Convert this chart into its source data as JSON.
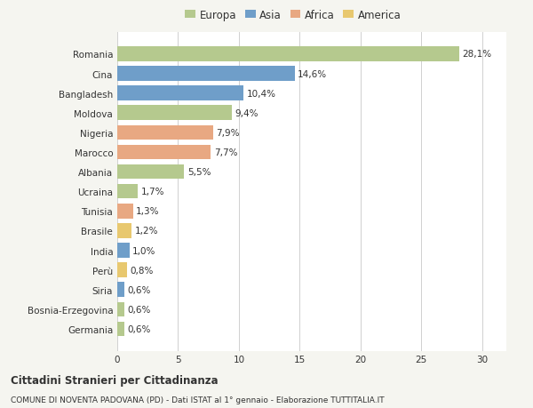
{
  "categories": [
    "Romania",
    "Cina",
    "Bangladesh",
    "Moldova",
    "Nigeria",
    "Marocco",
    "Albania",
    "Ucraina",
    "Tunisia",
    "Brasile",
    "India",
    "Perù",
    "Siria",
    "Bosnia-Erzegovina",
    "Germania"
  ],
  "values": [
    28.1,
    14.6,
    10.4,
    9.4,
    7.9,
    7.7,
    5.5,
    1.7,
    1.3,
    1.2,
    1.0,
    0.8,
    0.6,
    0.6,
    0.6
  ],
  "labels": [
    "28,1%",
    "14,6%",
    "10,4%",
    "9,4%",
    "7,9%",
    "7,7%",
    "5,5%",
    "1,7%",
    "1,3%",
    "1,2%",
    "1,0%",
    "0,8%",
    "0,6%",
    "0,6%",
    "0,6%"
  ],
  "colors": [
    "#b5c98e",
    "#6f9ec9",
    "#6f9ec9",
    "#b5c98e",
    "#e8a882",
    "#e8a882",
    "#b5c98e",
    "#b5c98e",
    "#e8a882",
    "#e8c86f",
    "#6f9ec9",
    "#e8c86f",
    "#6f9ec9",
    "#b5c98e",
    "#b5c98e"
  ],
  "legend_labels": [
    "Europa",
    "Asia",
    "Africa",
    "America"
  ],
  "legend_colors": [
    "#b5c98e",
    "#6f9ec9",
    "#e8a882",
    "#e8c86f"
  ],
  "xlim": [
    0,
    32
  ],
  "xticks": [
    0,
    5,
    10,
    15,
    20,
    25,
    30
  ],
  "title": "Cittadini Stranieri per Cittadinanza",
  "subtitle": "COMUNE DI NOVENTA PADOVANA (PD) - Dati ISTAT al 1° gennaio - Elaborazione TUTTITALIA.IT",
  "background_color": "#f5f5f0",
  "bar_background": "#ffffff",
  "grid_color": "#d0d0d0",
  "text_color": "#333333",
  "label_fontsize": 7.5,
  "tick_fontsize": 7.5,
  "bar_height": 0.75
}
